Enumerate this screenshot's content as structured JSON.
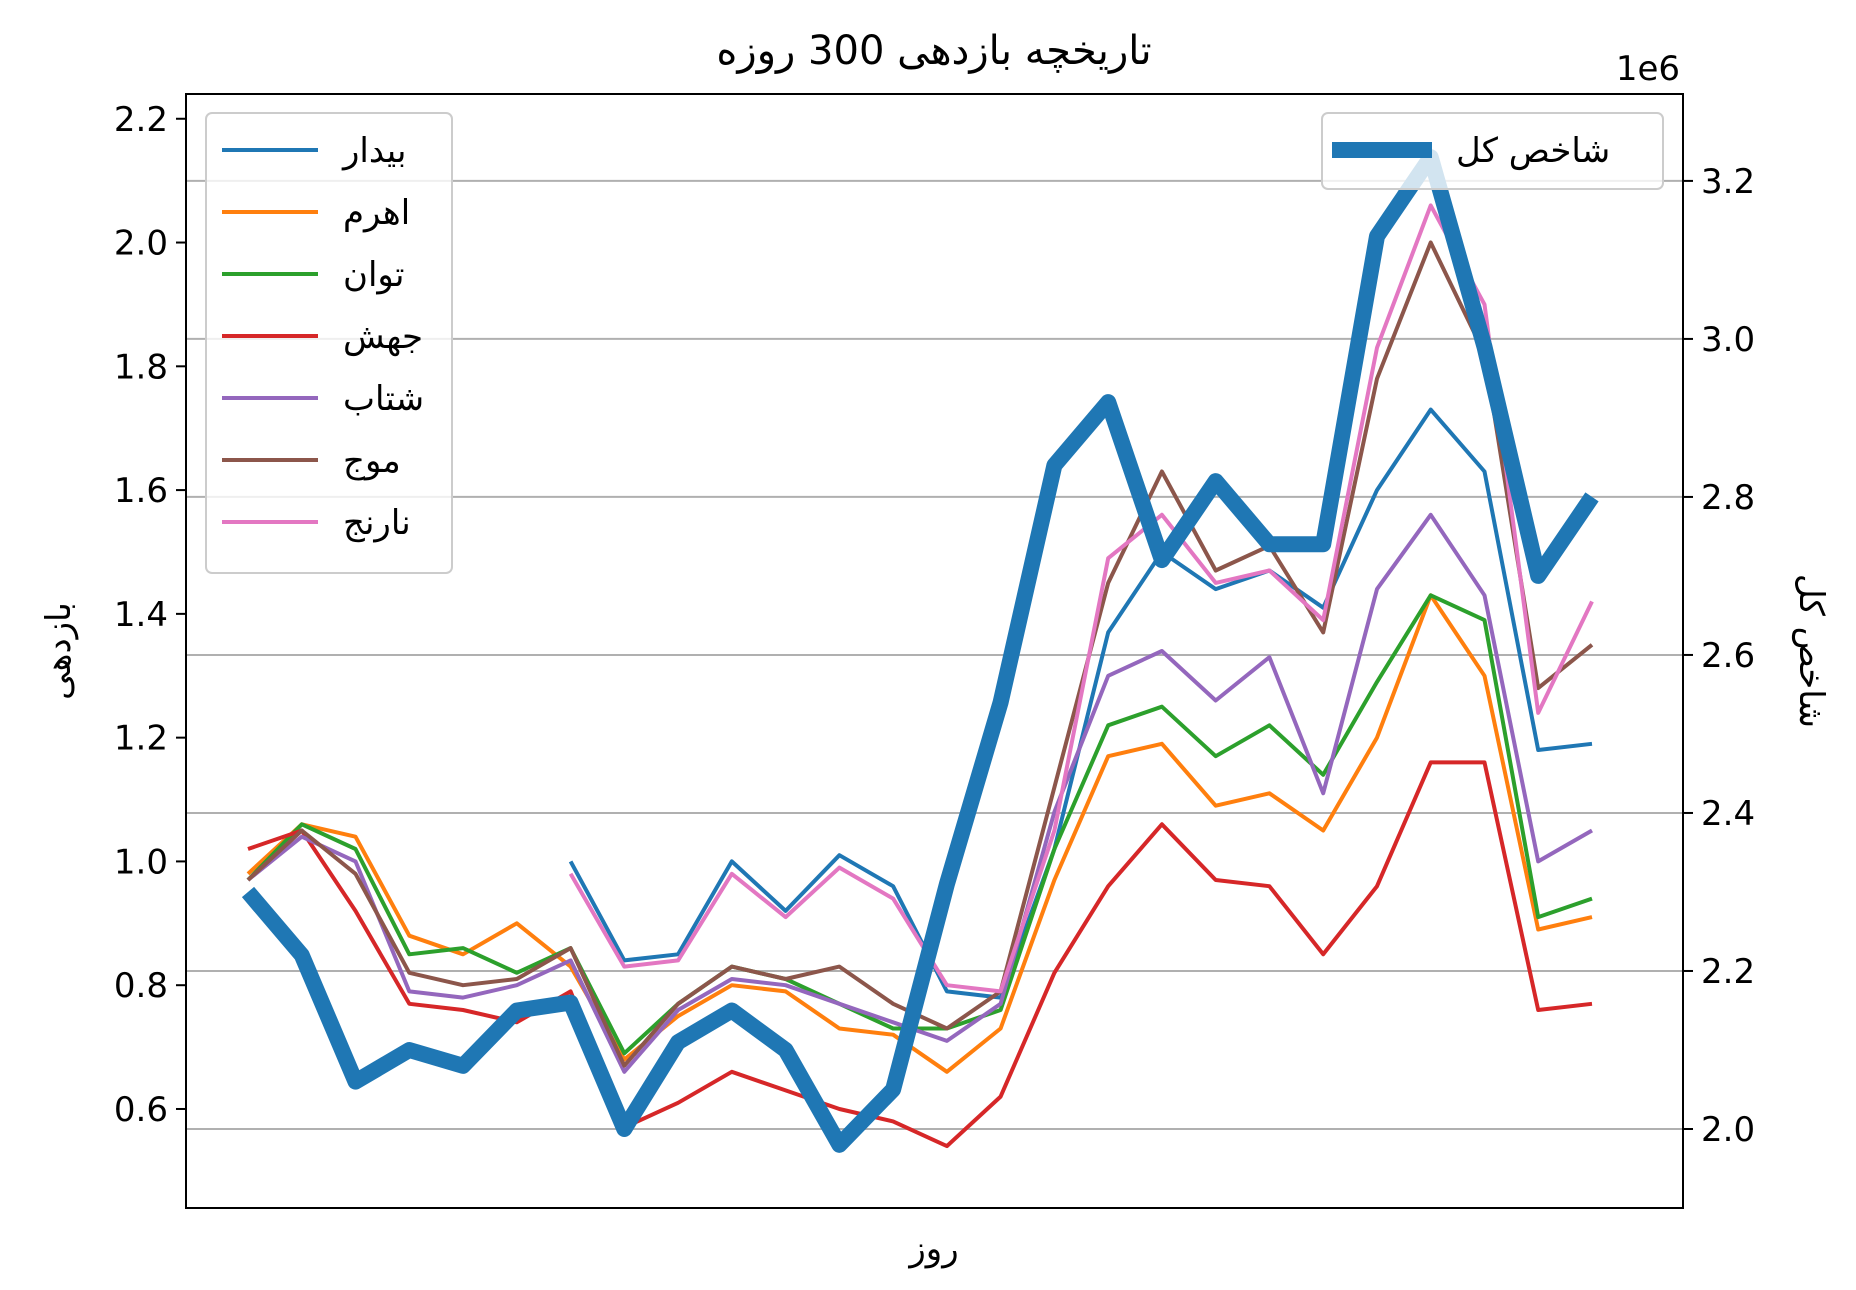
{
  "chart_data": {
    "type": "line",
    "title": "تاریخچه بازدهی 300 روزه",
    "xlabel": "روز",
    "ylabel": "بازدهی",
    "y2label": "شاخص کل",
    "y2_offset_label": "1e6",
    "ylim": [
      0.44,
      2.24
    ],
    "y2lim": [
      1.9,
      3.31
    ],
    "y_ticks": [
      "0.6",
      "0.8",
      "1.0",
      "1.2",
      "1.4",
      "1.6",
      "1.8",
      "2.0",
      "2.2"
    ],
    "y2_ticks": [
      "2.0",
      "2.2",
      "2.4",
      "2.6",
      "2.8",
      "3.0",
      "3.2"
    ],
    "grid": "right axis horizontal gridlines",
    "legend_left_position": "upper-left",
    "legend_right_position": "upper-right",
    "x": [
      0,
      12,
      24,
      36,
      48,
      60,
      72,
      84,
      96,
      108,
      120,
      132,
      144,
      156,
      168,
      180,
      192,
      204,
      216,
      228,
      240,
      252,
      264,
      276,
      288,
      300
    ],
    "series": [
      {
        "name": "بیدار",
        "color": "#1f77b4",
        "axis": "left",
        "values": [
          null,
          null,
          null,
          null,
          null,
          null,
          1.0,
          0.84,
          0.85,
          1.0,
          0.92,
          1.01,
          0.96,
          0.79,
          0.78,
          1.02,
          1.37,
          1.5,
          1.44,
          1.47,
          1.41,
          1.6,
          1.73,
          1.63,
          1.18,
          1.19
        ]
      },
      {
        "name": "اهرم",
        "color": "#ff7f0e",
        "axis": "left",
        "values": [
          0.98,
          1.06,
          1.04,
          0.88,
          0.85,
          0.9,
          0.83,
          0.68,
          0.75,
          0.8,
          0.79,
          0.73,
          0.72,
          0.66,
          0.73,
          0.97,
          1.17,
          1.19,
          1.09,
          1.11,
          1.05,
          1.2,
          1.43,
          1.3,
          0.89,
          0.91
        ]
      },
      {
        "name": "توان",
        "color": "#2ca02c",
        "axis": "left",
        "values": [
          0.97,
          1.06,
          1.02,
          0.85,
          0.86,
          0.82,
          0.86,
          0.69,
          0.77,
          0.83,
          0.81,
          0.77,
          0.73,
          0.73,
          0.76,
          1.02,
          1.22,
          1.25,
          1.17,
          1.22,
          1.14,
          1.29,
          1.43,
          1.39,
          0.91,
          0.94
        ]
      },
      {
        "name": "جهش",
        "color": "#d62728",
        "axis": "left",
        "values": [
          1.02,
          1.05,
          0.92,
          0.77,
          0.76,
          0.74,
          0.79,
          0.57,
          0.61,
          0.66,
          0.63,
          0.6,
          0.58,
          0.54,
          0.62,
          0.82,
          0.96,
          1.06,
          0.97,
          0.96,
          0.85,
          0.96,
          1.16,
          1.16,
          0.76,
          0.77
        ]
      },
      {
        "name": "شتاب",
        "color": "#9467bd",
        "axis": "left",
        "values": [
          0.97,
          1.04,
          1.0,
          0.79,
          0.78,
          0.8,
          0.84,
          0.66,
          0.76,
          0.81,
          0.8,
          0.77,
          0.74,
          0.71,
          0.77,
          1.08,
          1.3,
          1.34,
          1.26,
          1.33,
          1.11,
          1.44,
          1.56,
          1.43,
          1.0,
          1.05
        ]
      },
      {
        "name": "موج",
        "color": "#8c564b",
        "axis": "left",
        "values": [
          0.97,
          1.05,
          0.98,
          0.82,
          0.8,
          0.81,
          0.86,
          0.67,
          0.77,
          0.83,
          0.81,
          0.83,
          0.77,
          0.73,
          0.79,
          1.12,
          1.45,
          1.63,
          1.47,
          1.51,
          1.37,
          1.78,
          2.0,
          1.82,
          1.28,
          1.35
        ]
      },
      {
        "name": "نارنج",
        "color": "#e377c2",
        "axis": "left",
        "values": [
          null,
          null,
          null,
          null,
          null,
          null,
          0.98,
          0.83,
          0.84,
          0.98,
          0.91,
          0.99,
          0.94,
          0.8,
          0.79,
          1.05,
          1.49,
          1.56,
          1.45,
          1.47,
          1.39,
          1.83,
          2.06,
          1.9,
          1.24,
          1.42
        ]
      },
      {
        "name": "شاخص کل",
        "color": "#1f77b4",
        "axis": "right",
        "thick": true,
        "values": [
          2.3,
          2.22,
          2.06,
          2.1,
          2.08,
          2.15,
          2.16,
          2.0,
          2.11,
          2.15,
          2.1,
          1.98,
          2.05,
          2.31,
          2.54,
          2.84,
          2.92,
          2.72,
          2.82,
          2.74,
          2.74,
          3.13,
          3.23,
          2.99,
          2.7,
          2.8
        ]
      }
    ]
  }
}
